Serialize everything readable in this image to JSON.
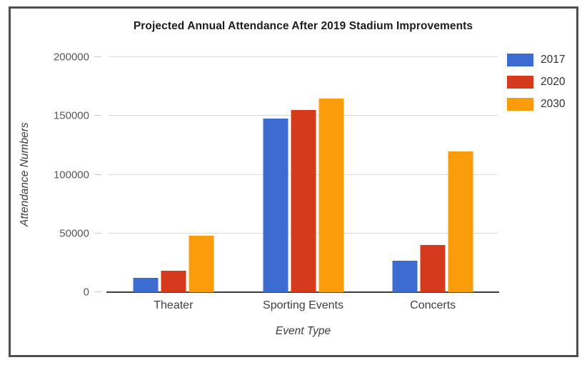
{
  "window": {
    "background_color": "#ffffff",
    "frame_border_color": "#4f4f4f"
  },
  "chart_data": {
    "type": "bar",
    "title": "Projected Annual Attendance After 2019 Stadium Improvements",
    "xlabel": "Event Type",
    "ylabel": "Attendance Numbers",
    "categories": [
      "Theater",
      "Sporting Events",
      "Concerts"
    ],
    "series": [
      {
        "name": "2017",
        "color": "#3D6CD0",
        "values": [
          12000,
          148000,
          27000
        ]
      },
      {
        "name": "2020",
        "color": "#D43A1B",
        "values": [
          18000,
          155000,
          40000
        ]
      },
      {
        "name": "2030",
        "color": "#FB9C0B",
        "values": [
          48000,
          165000,
          120000
        ]
      }
    ],
    "ylim": [
      0,
      200000
    ],
    "yticks": [
      0,
      50000,
      100000,
      150000,
      200000
    ],
    "grid": true,
    "legend_position": "top-right",
    "gridline_color": "#d9d9d9",
    "axis_line_color": "#3d3d3d"
  }
}
